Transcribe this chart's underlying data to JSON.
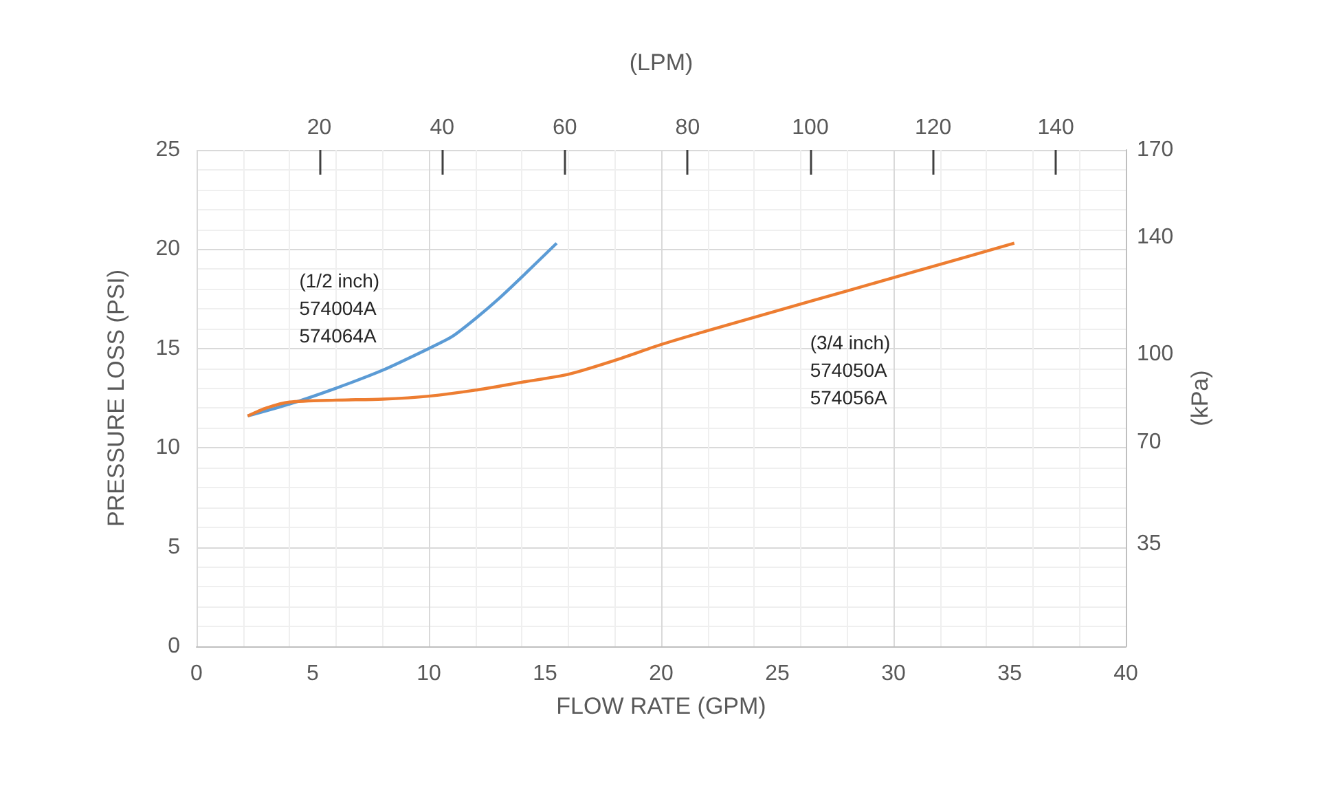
{
  "chart_data": {
    "type": "line",
    "xlabel": "FLOW RATE (GPM)",
    "ylabel": "PRESSURE LOSS (PSI)",
    "y2label": "(kPa)",
    "x2label": "(LPM)",
    "xlim": [
      0,
      40
    ],
    "xticks": [
      0,
      5,
      10,
      15,
      20,
      25,
      30,
      35,
      40
    ],
    "ylim": [
      0,
      25
    ],
    "yticks": [
      0,
      5,
      10,
      15,
      20,
      25
    ],
    "x2lim": [
      0,
      151.4
    ],
    "x2ticks": [
      20,
      40,
      60,
      80,
      100,
      120,
      140
    ],
    "y2lim": [
      0,
      170
    ],
    "y2ticks": [
      35,
      70,
      100,
      140,
      170
    ],
    "grid": true,
    "marker": "none",
    "line_style": "solid",
    "series": [
      {
        "color": "#5b9bd5",
        "x": [
          2.2,
          4,
          6,
          8,
          10,
          11,
          12,
          13,
          14,
          15.5
        ],
        "values": [
          11.6,
          12.2,
          13.0,
          13.9,
          15.0,
          15.6,
          16.5,
          17.5,
          18.6,
          20.3
        ]
      },
      {
        "color": "#ed7d31",
        "x": [
          2.2,
          3,
          4,
          6,
          8,
          10,
          12,
          14,
          16,
          18,
          20,
          22,
          25,
          28,
          31,
          35.2
        ],
        "values": [
          11.6,
          12.0,
          12.3,
          12.4,
          12.45,
          12.6,
          12.9,
          13.3,
          13.7,
          14.4,
          15.2,
          15.9,
          16.9,
          17.9,
          18.9,
          20.3
        ]
      }
    ],
    "annotations": [
      "(1/2 inch)\n574004A\n574064A",
      "(3/4 inch)\n574050A\n574056A"
    ]
  }
}
